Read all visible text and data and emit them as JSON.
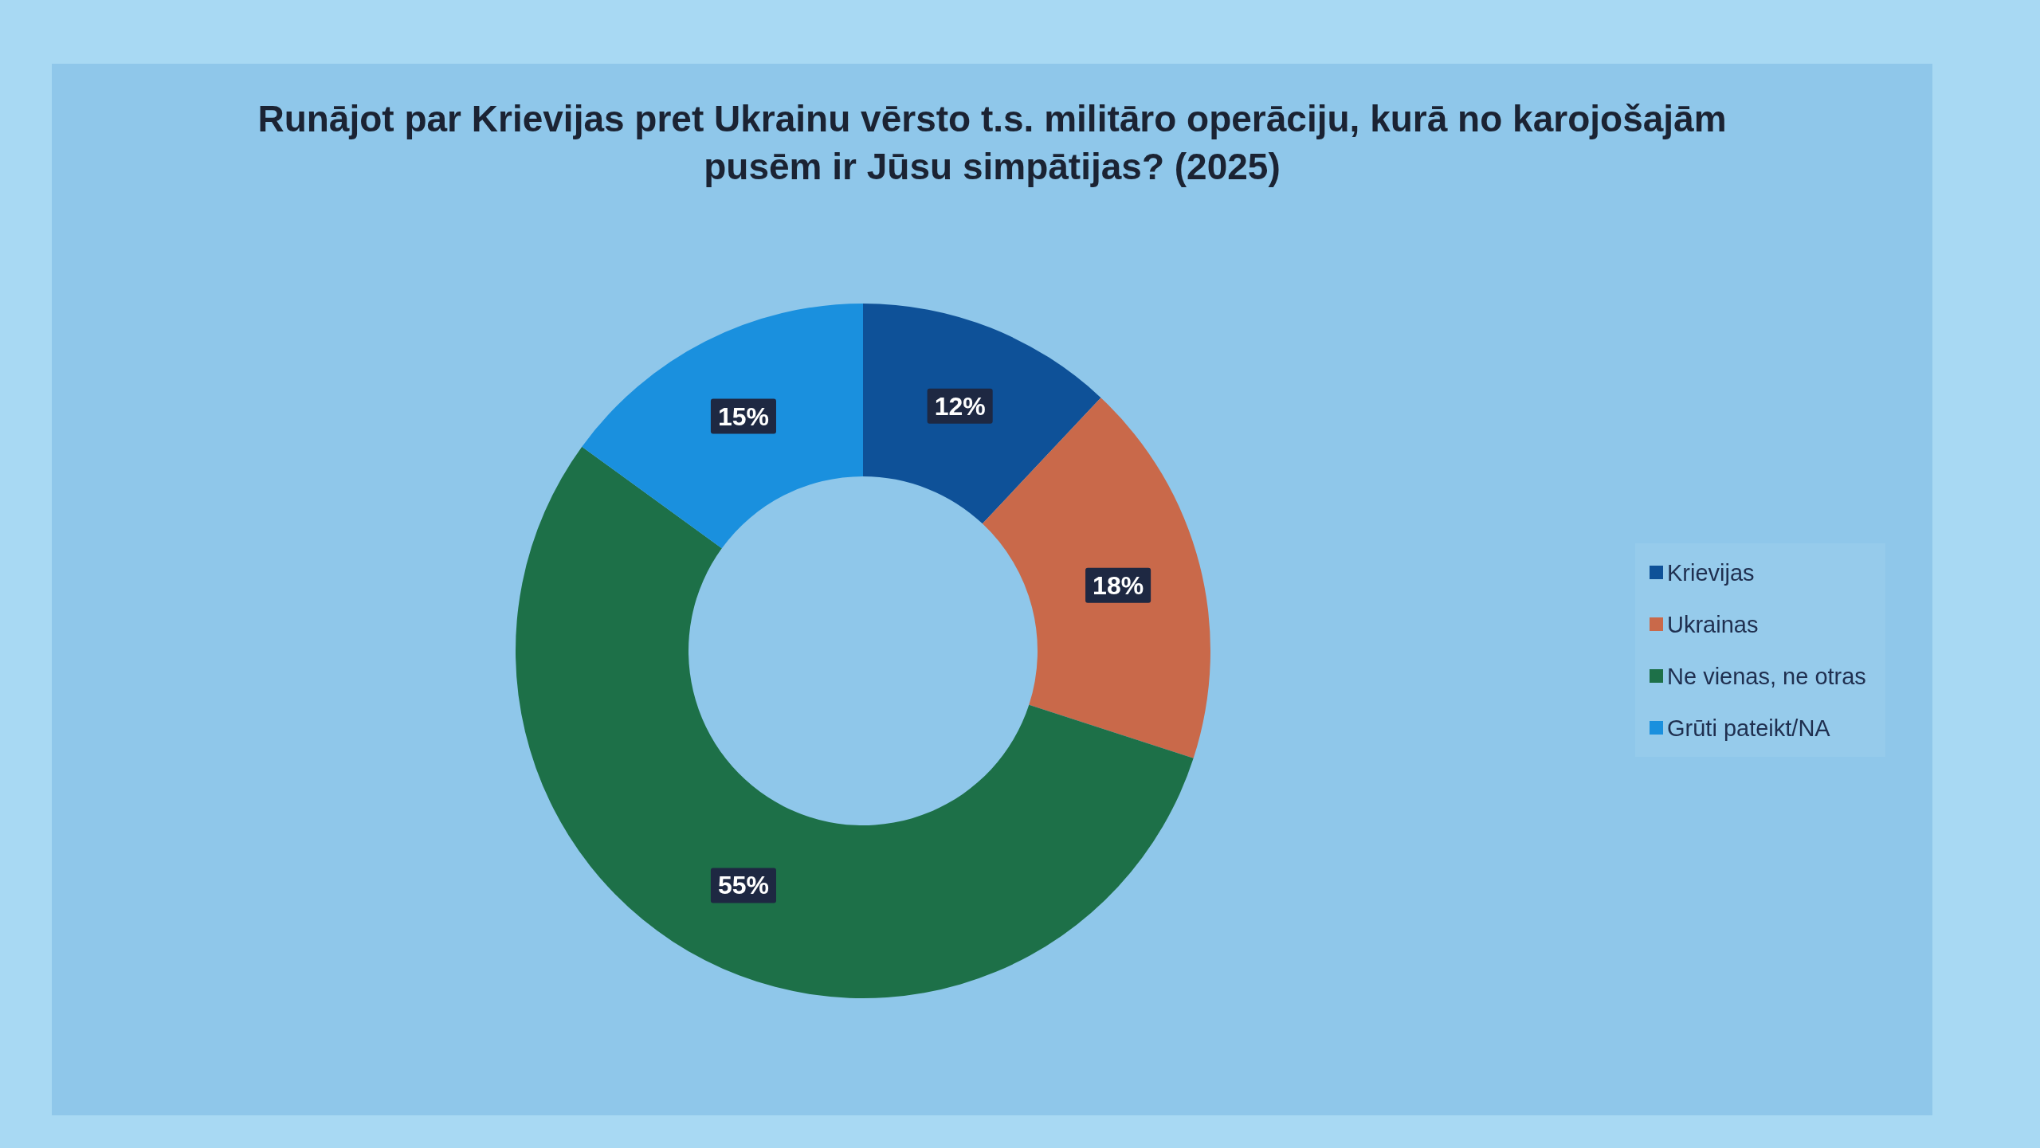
{
  "chart_data": {
    "type": "donut",
    "title": "Runājot par Krievijas pret Ukrainu vērsto t.s. militāro operāciju, kurā no karojošajām pusēm ir Jūsu simpātijas? (2025)",
    "categories": [
      "Krievijas",
      "Ukrainas",
      "Ne vienas, ne otras",
      "Grūti pateikt/NA"
    ],
    "values": [
      12,
      18,
      55,
      15
    ],
    "colors": [
      "#0e5198",
      "#c9694a",
      "#1d7048",
      "#1a90de"
    ],
    "value_labels": [
      "12%",
      "18%",
      "55%",
      "15%"
    ],
    "legend": "right"
  }
}
